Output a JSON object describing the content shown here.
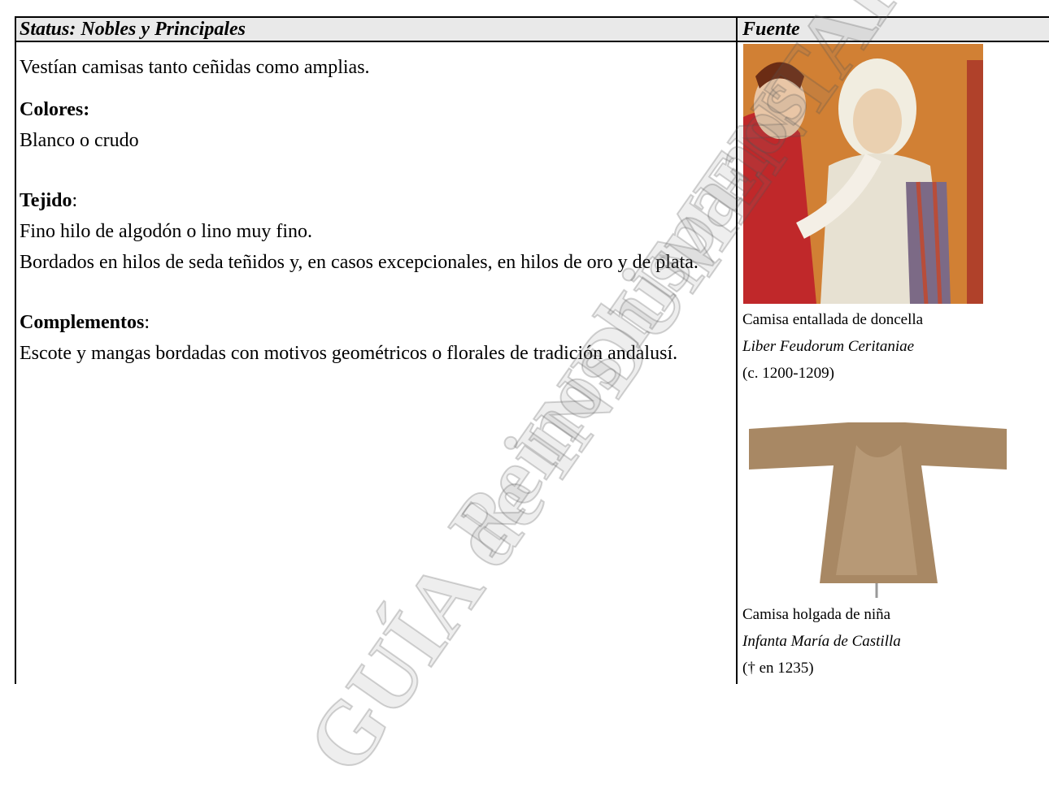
{
  "header": {
    "status": "Status: Nobles y Principales",
    "source": "Fuente"
  },
  "content": {
    "intro": "Vestían camisas tanto ceñidas como amplias.",
    "sections": [
      {
        "heading": "Colores:",
        "lines": [
          "Blanco o crudo"
        ]
      },
      {
        "heading": "Tejido",
        "punct": ":",
        "lines": [
          "Fino hilo de algodón o lino muy fino.",
          "Bordados en hilos de seda teñidos y, en casos excepcionales, en hilos de oro y de plata."
        ]
      },
      {
        "heading": "Complementos",
        "punct": ":",
        "lines": [
          "Escote y  mangas bordadas con motivos geométricos o florales  de tradición andalusí."
        ]
      }
    ]
  },
  "sources": [
    {
      "caption": [
        "Camisa entallada de doncella",
        "Liber Feudorum Ceritaniae",
        "(c. 1200-1209)"
      ]
    },
    {
      "caption": [
        "Camisa holgada de niña",
        "Infanta María de Castilla",
        "(† en 1235)"
      ]
    }
  ],
  "watermark": [
    "GUÍA de INDUMENTARIA",
    "Reinos hispanos"
  ]
}
